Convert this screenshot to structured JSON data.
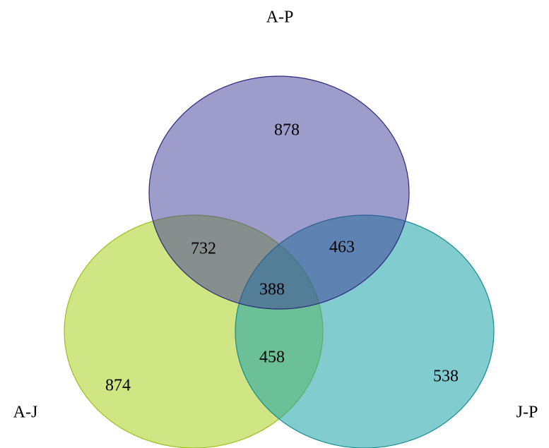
{
  "sets": [
    {
      "key": "ap",
      "name": "A-P",
      "fill": "#3b3a98",
      "stroke": "#2b2a7a"
    },
    {
      "key": "aj",
      "name": "A-J",
      "fill": "#b1d430",
      "stroke": "#9cbf1e"
    },
    {
      "key": "jp",
      "name": "J-P",
      "fill": "#1aa3a8",
      "stroke": "#148c91"
    }
  ],
  "regions": {
    "ap_only": "878",
    "aj_only": "874",
    "jp_only": "538",
    "ap_aj": "732",
    "ap_jp": "463",
    "aj_jp": "458",
    "all": "388"
  }
}
